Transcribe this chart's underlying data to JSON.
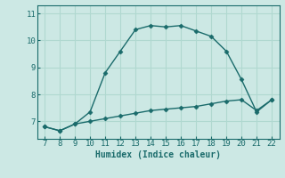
{
  "xlabel": "Humidex (Indice chaleur)",
  "x_main": [
    7,
    8,
    9,
    10,
    11,
    12,
    13,
    14,
    15,
    16,
    17,
    18,
    19,
    20,
    21,
    22
  ],
  "y_main": [
    6.8,
    6.65,
    6.9,
    7.35,
    8.8,
    9.6,
    10.4,
    10.55,
    10.5,
    10.55,
    10.35,
    10.15,
    9.6,
    8.55,
    7.35,
    7.8
  ],
  "x_second": [
    7,
    8,
    9,
    10,
    11,
    12,
    13,
    14,
    15,
    16,
    17,
    18,
    19,
    20,
    21,
    22
  ],
  "y_second": [
    6.8,
    6.65,
    6.9,
    7.0,
    7.1,
    7.2,
    7.3,
    7.4,
    7.45,
    7.5,
    7.55,
    7.65,
    7.75,
    7.8,
    7.4,
    7.8
  ],
  "line_color": "#1a6b6b",
  "bg_color": "#cce8e4",
  "grid_color": "#b0d8d0",
  "xlim": [
    6.5,
    22.5
  ],
  "ylim": [
    6.35,
    11.3
  ],
  "xticks": [
    7,
    8,
    9,
    10,
    11,
    12,
    13,
    14,
    15,
    16,
    17,
    18,
    19,
    20,
    21,
    22
  ],
  "yticks": [
    7,
    8,
    9,
    10,
    11
  ],
  "marker": "D",
  "markersize": 2.5,
  "linewidth": 1.0,
  "label_fontsize": 6.5,
  "xlabel_fontsize": 7.0
}
